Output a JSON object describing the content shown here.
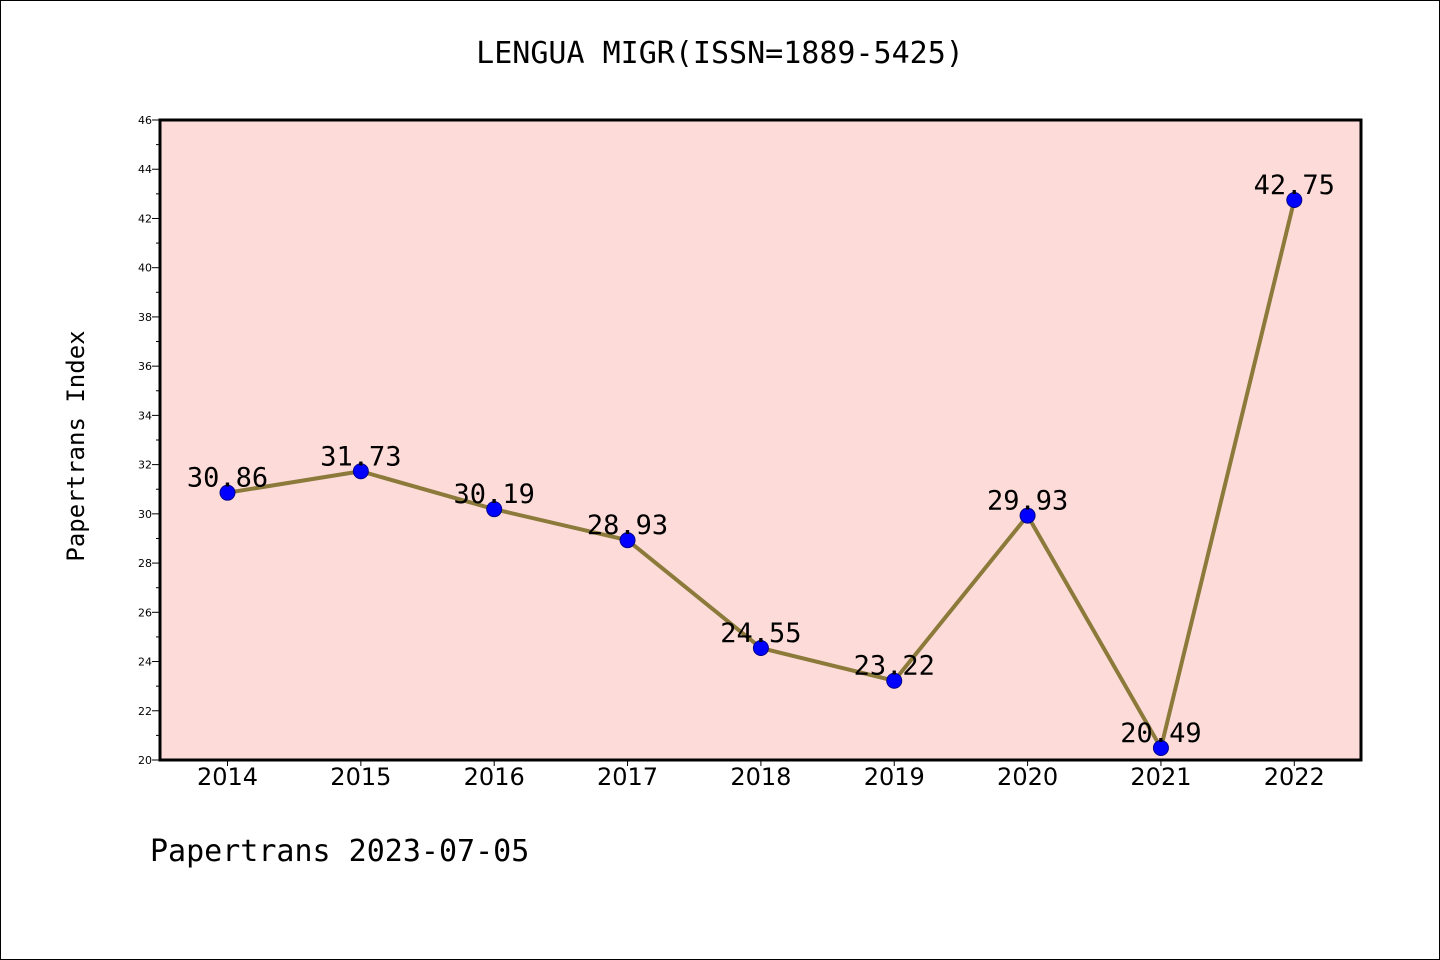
{
  "chart_data": {
    "type": "line",
    "title": "LENGUA MIGR(ISSN=1889-5425)",
    "xlabel": "",
    "ylabel": "Papertrans Index",
    "categories": [
      "2014",
      "2015",
      "2016",
      "2017",
      "2018",
      "2019",
      "2020",
      "2021",
      "2022"
    ],
    "series": [
      {
        "values": [
          30.86,
          31.73,
          30.19,
          28.93,
          24.55,
          23.22,
          29.93,
          20.49,
          42.75
        ],
        "labels": [
          "30.86",
          "31.73",
          "30.19",
          "28.93",
          "24.55",
          "23.22",
          "29.93",
          "20.49",
          "42.75"
        ]
      }
    ],
    "ylim": [
      20,
      46
    ],
    "y_ticks": [
      "20",
      "22",
      "24",
      "26",
      "28",
      "30",
      "32",
      "34",
      "36",
      "38",
      "40",
      "42",
      "44",
      "46"
    ],
    "grid": false,
    "colors": {
      "plot_background": "#fddbd8",
      "line": "#8b7a3a",
      "marker": "#0000ff"
    }
  },
  "footer": "Papertrans 2023-07-05"
}
